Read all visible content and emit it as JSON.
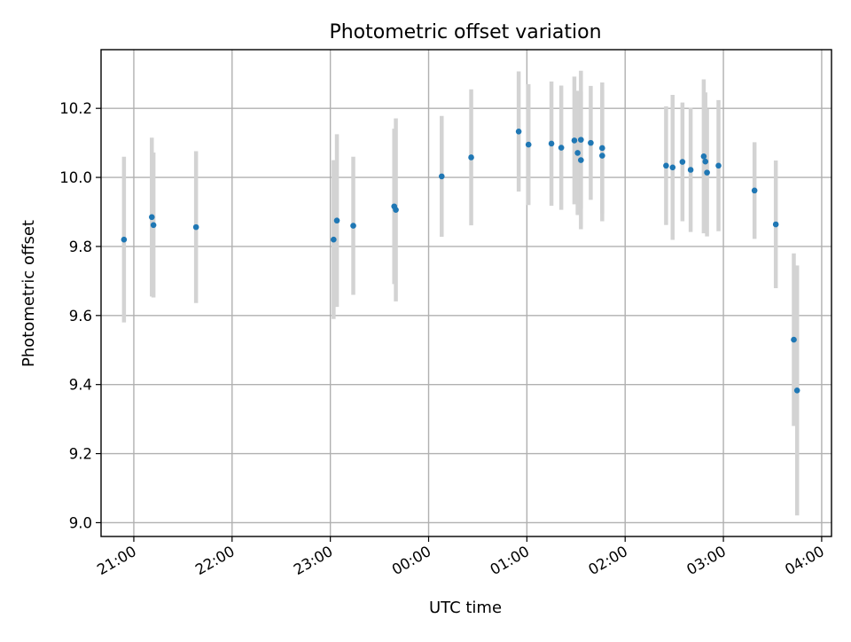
{
  "chart_data": {
    "type": "scatter",
    "title": "Photometric offset variation",
    "xlabel": "UTC time",
    "ylabel": "Photometric offset",
    "x_unit": "UTC time (HH:MM)",
    "xlim": [
      "20:40",
      "04:06"
    ],
    "ylim": [
      8.96,
      10.37
    ],
    "x_ticks": [
      "21:00",
      "22:00",
      "23:00",
      "00:00",
      "01:00",
      "02:00",
      "03:00",
      "04:00"
    ],
    "y_ticks": [
      9.0,
      9.2,
      9.4,
      9.6,
      9.8,
      10.0,
      10.2
    ],
    "y_tick_labels": [
      "9.0",
      "9.2",
      "9.4",
      "9.6",
      "9.8",
      "10.0",
      "10.2"
    ],
    "grid": true,
    "point_color": "#1f77b4",
    "errorbar_color": "#d3d3d3",
    "points": [
      {
        "x": "20:54",
        "y": 9.82,
        "err": 0.24
      },
      {
        "x": "21:11",
        "y": 9.885,
        "err": 0.23
      },
      {
        "x": "21:12",
        "y": 9.862,
        "err": 0.21
      },
      {
        "x": "21:38",
        "y": 9.856,
        "err": 0.22
      },
      {
        "x": "23:02",
        "y": 9.82,
        "err": 0.23
      },
      {
        "x": "23:04",
        "y": 9.875,
        "err": 0.25
      },
      {
        "x": "23:14",
        "y": 9.86,
        "err": 0.2
      },
      {
        "x": "23:39",
        "y": 9.916,
        "err": 0.225
      },
      {
        "x": "23:40",
        "y": 9.906,
        "err": 0.265
      },
      {
        "x": "00:08",
        "y": 10.003,
        "err": 0.175
      },
      {
        "x": "00:26",
        "y": 10.058,
        "err": 0.197
      },
      {
        "x": "00:55",
        "y": 10.133,
        "err": 0.174
      },
      {
        "x": "01:01",
        "y": 10.095,
        "err": 0.175
      },
      {
        "x": "01:15",
        "y": 10.098,
        "err": 0.18
      },
      {
        "x": "01:21",
        "y": 10.086,
        "err": 0.18
      },
      {
        "x": "01:29",
        "y": 10.107,
        "err": 0.185
      },
      {
        "x": "01:31",
        "y": 10.071,
        "err": 0.18
      },
      {
        "x": "01:33",
        "y": 10.109,
        "err": 0.2
      },
      {
        "x": "01:33",
        "y": 10.05,
        "err": 0.2
      },
      {
        "x": "01:39",
        "y": 10.1,
        "err": 0.165
      },
      {
        "x": "01:46",
        "y": 10.085,
        "err": 0.19
      },
      {
        "x": "01:46",
        "y": 10.063,
        "err": 0.19
      },
      {
        "x": "02:25",
        "y": 10.034,
        "err": 0.172
      },
      {
        "x": "02:29",
        "y": 10.029,
        "err": 0.21
      },
      {
        "x": "02:35",
        "y": 10.045,
        "err": 0.172
      },
      {
        "x": "02:40",
        "y": 10.022,
        "err": 0.18
      },
      {
        "x": "02:48",
        "y": 10.061,
        "err": 0.223
      },
      {
        "x": "02:49",
        "y": 10.046,
        "err": 0.2
      },
      {
        "x": "02:50",
        "y": 10.014,
        "err": 0.185
      },
      {
        "x": "02:57",
        "y": 10.034,
        "err": 0.19
      },
      {
        "x": "03:19",
        "y": 9.962,
        "err": 0.14
      },
      {
        "x": "03:32",
        "y": 9.864,
        "err": 0.185
      },
      {
        "x": "03:43",
        "y": 9.53,
        "err": 0.25
      },
      {
        "x": "03:45",
        "y": 9.383,
        "err": 0.362
      }
    ]
  }
}
